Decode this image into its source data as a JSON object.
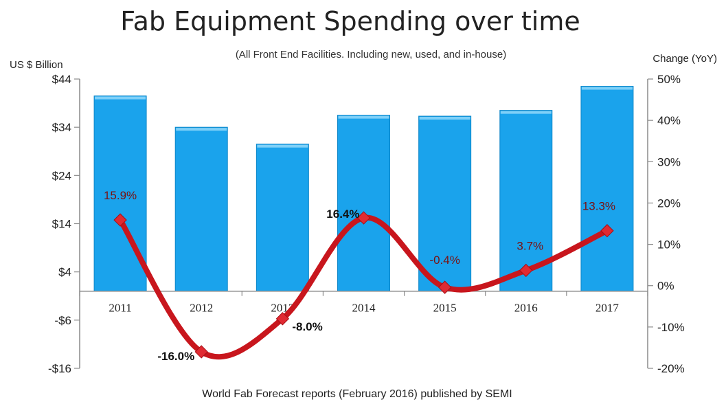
{
  "chart_data": {
    "type": "bar",
    "title": "Fab Equipment Spending over time",
    "subtitle": "(All Front End Facilities. Including new, used, and in-house)",
    "ylabel": "US $ Billion",
    "y2label": "Change (YoY)",
    "footer": "World Fab Forecast reports (February 2016) published by SEMI",
    "categories": [
      "2011",
      "2012",
      "2013",
      "2014",
      "2015",
      "2016",
      "2017"
    ],
    "ylim": [
      -16,
      44
    ],
    "yticks": [
      -16,
      -6,
      4,
      14,
      24,
      34,
      44
    ],
    "ytick_labels": [
      "-$16",
      "-$6",
      "$4",
      "$14",
      "$24",
      "$34",
      "$44"
    ],
    "y2lim": [
      -20,
      50
    ],
    "y2ticks": [
      -20,
      -10,
      0,
      10,
      20,
      30,
      40,
      50
    ],
    "y2tick_labels": [
      "-20%",
      "-10%",
      "0%",
      "10%",
      "20%",
      "30%",
      "40%",
      "50%"
    ],
    "grid": false,
    "series": [
      {
        "type": "bar",
        "axis": "left",
        "color": "#1aa3ec",
        "values": [
          40.5,
          34,
          30.5,
          36.5,
          36.3,
          37.5,
          42.5
        ]
      },
      {
        "type": "line",
        "axis": "right",
        "color": "#c8161d",
        "values": [
          15.9,
          -16.0,
          -8.0,
          16.4,
          -0.4,
          3.7,
          13.3
        ],
        "labels": [
          "15.9%",
          "-16.0%",
          "-8.0%",
          "16.4%",
          "-0.4%",
          "3.7%",
          "13.3%"
        ]
      }
    ]
  }
}
